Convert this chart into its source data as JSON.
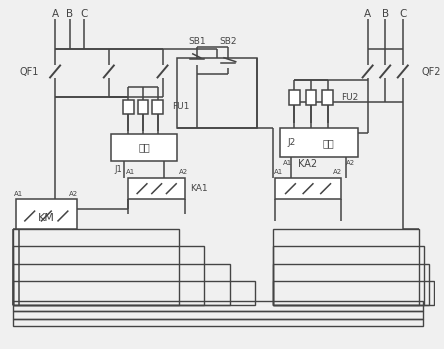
{
  "bg_color": "#f0f0f0",
  "line_color": "#444444",
  "lw": 1.1,
  "figsize": [
    4.44,
    3.49
  ],
  "dpi": 100,
  "labels": {
    "A1": "A",
    "B1": "B",
    "C1": "C",
    "A2": "A",
    "B2": "B",
    "C2": "C",
    "QF1": "QF1",
    "QF2": "QF2",
    "FU1": "FU1",
    "FU2": "FU2",
    "J1": "J1",
    "J2": "J2",
    "xiangxu": "相序",
    "KA1": "KA1",
    "KA2": "KA2",
    "KM": "KM",
    "SB1": "SB1",
    "SB2": "SB2",
    "A1t": "A1",
    "A2t": "A2"
  }
}
